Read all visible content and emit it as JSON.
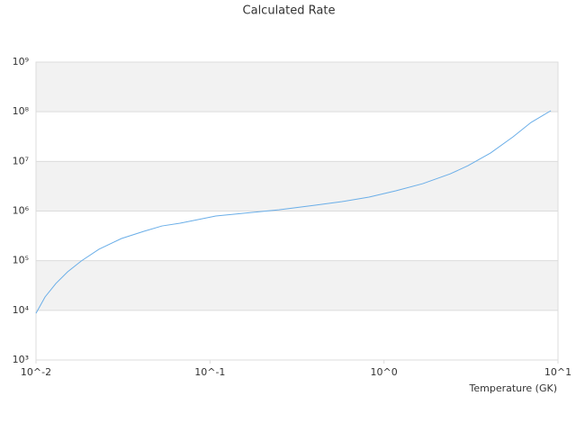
{
  "chart_data": {
    "type": "line",
    "title": "Calculated Rate",
    "x_label": "Temperature (GK)",
    "log_x": true,
    "log_y": true,
    "grid": true,
    "color": "#6aaee8",
    "x": [
      0.01,
      0.01127,
      0.013,
      0.0152,
      0.0182,
      0.023,
      0.031,
      0.0417,
      0.053,
      0.0673,
      0.0853,
      0.108,
      0.155,
      0.249,
      0.402,
      0.574,
      0.82,
      1.17,
      1.67,
      2.4,
      3.04,
      4.1,
      5.52,
      7.0,
      9.1
    ],
    "values": [
      8700,
      18600,
      34700,
      59700,
      98600,
      170000,
      280000,
      391000,
      501000,
      569000,
      673000,
      795000,
      900000,
      1060000,
      1310000,
      1550000,
      1910000,
      2560000,
      3560000,
      5600000,
      8200000,
      14800000,
      31300000,
      61000000,
      105000000
    ],
    "xlim": [
      0.01,
      10
    ],
    "xticks": [
      {
        "value": 0.01,
        "label": "10^-2"
      },
      {
        "value": 0.1,
        "label": "10^-1"
      },
      {
        "value": 1,
        "label": "10^0"
      },
      {
        "value": 10,
        "label": "10^1"
      }
    ],
    "ylim": [
      1000,
      1000000000
    ],
    "yticks": [
      {
        "value": 1000,
        "label": "10³"
      },
      {
        "value": 10000,
        "label": "10⁴"
      },
      {
        "value": 100000,
        "label": "10⁵"
      },
      {
        "value": 1000000,
        "label": "10⁶"
      },
      {
        "value": 10000000,
        "label": "10⁷"
      },
      {
        "value": 100000000,
        "label": "10⁸"
      },
      {
        "value": 1000000000,
        "label": "10⁹"
      }
    ]
  }
}
